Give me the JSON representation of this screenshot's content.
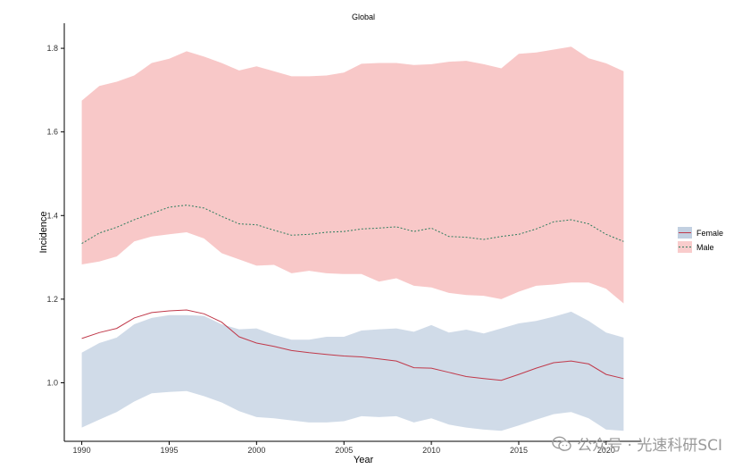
{
  "chart_data": {
    "type": "area",
    "title": "Global",
    "xlabel": "Year",
    "ylabel": "Incidence",
    "xlim": [
      1989,
      2022
    ],
    "ylim": [
      0.86,
      1.86
    ],
    "xticks": [
      1990,
      1995,
      2000,
      2005,
      2010,
      2015,
      2020
    ],
    "yticks": [
      1.0,
      1.2,
      1.4,
      1.6,
      1.8
    ],
    "ytick_labels": [
      "1.0",
      "1.2",
      "1.4",
      "1.6",
      "1.8"
    ],
    "grid": false,
    "legend_position": "right",
    "x": [
      1990,
      1991,
      1992,
      1993,
      1994,
      1995,
      1996,
      1997,
      1998,
      1999,
      2000,
      2001,
      2002,
      2003,
      2004,
      2005,
      2006,
      2007,
      2008,
      2009,
      2010,
      2011,
      2012,
      2013,
      2014,
      2015,
      2016,
      2017,
      2018,
      2019,
      2020,
      2021
    ],
    "series": [
      {
        "name": "Female",
        "color": "#c0394a",
        "band_color": "#8fa9c9",
        "line_style": "solid",
        "values": [
          1.106,
          1.12,
          1.13,
          1.155,
          1.168,
          1.172,
          1.174,
          1.165,
          1.145,
          1.11,
          1.095,
          1.087,
          1.077,
          1.072,
          1.068,
          1.064,
          1.062,
          1.057,
          1.052,
          1.036,
          1.035,
          1.025,
          1.015,
          1.01,
          1.006,
          1.02,
          1.035,
          1.048,
          1.052,
          1.045,
          1.02,
          1.01
        ],
        "lower": [
          0.893,
          0.912,
          0.93,
          0.955,
          0.975,
          0.978,
          0.98,
          0.968,
          0.953,
          0.932,
          0.918,
          0.915,
          0.91,
          0.905,
          0.905,
          0.908,
          0.92,
          0.918,
          0.92,
          0.905,
          0.915,
          0.9,
          0.893,
          0.888,
          0.885,
          0.898,
          0.912,
          0.925,
          0.93,
          0.915,
          0.888,
          0.885
        ],
        "upper": [
          1.072,
          1.095,
          1.108,
          1.14,
          1.155,
          1.162,
          1.162,
          1.16,
          1.14,
          1.128,
          1.13,
          1.115,
          1.103,
          1.103,
          1.11,
          1.11,
          1.125,
          1.128,
          1.13,
          1.122,
          1.138,
          1.12,
          1.127,
          1.118,
          1.13,
          1.142,
          1.148,
          1.158,
          1.17,
          1.148,
          1.12,
          1.108
        ]
      },
      {
        "name": "Male",
        "color": "#2e7d5e",
        "band_color": "#f4a3a3",
        "line_style": "dotted",
        "values": [
          1.333,
          1.358,
          1.372,
          1.39,
          1.405,
          1.42,
          1.425,
          1.418,
          1.398,
          1.38,
          1.378,
          1.365,
          1.353,
          1.355,
          1.36,
          1.362,
          1.368,
          1.37,
          1.373,
          1.362,
          1.37,
          1.35,
          1.348,
          1.343,
          1.35,
          1.355,
          1.368,
          1.385,
          1.39,
          1.38,
          1.355,
          1.338
        ],
        "lower": [
          1.283,
          1.29,
          1.302,
          1.338,
          1.35,
          1.355,
          1.36,
          1.345,
          1.31,
          1.295,
          1.28,
          1.282,
          1.262,
          1.268,
          1.262,
          1.26,
          1.26,
          1.242,
          1.25,
          1.232,
          1.228,
          1.215,
          1.21,
          1.208,
          1.2,
          1.218,
          1.232,
          1.235,
          1.24,
          1.24,
          1.225,
          1.19
        ],
        "upper": [
          1.675,
          1.71,
          1.72,
          1.735,
          1.765,
          1.775,
          1.793,
          1.78,
          1.765,
          1.747,
          1.757,
          1.745,
          1.733,
          1.733,
          1.735,
          1.742,
          1.763,
          1.765,
          1.765,
          1.76,
          1.762,
          1.768,
          1.77,
          1.762,
          1.752,
          1.787,
          1.79,
          1.797,
          1.804,
          1.776,
          1.764,
          1.745
        ]
      }
    ]
  },
  "watermark": {
    "text": "公众号 · 光速科研SCI",
    "icon": "wechat-icon"
  }
}
